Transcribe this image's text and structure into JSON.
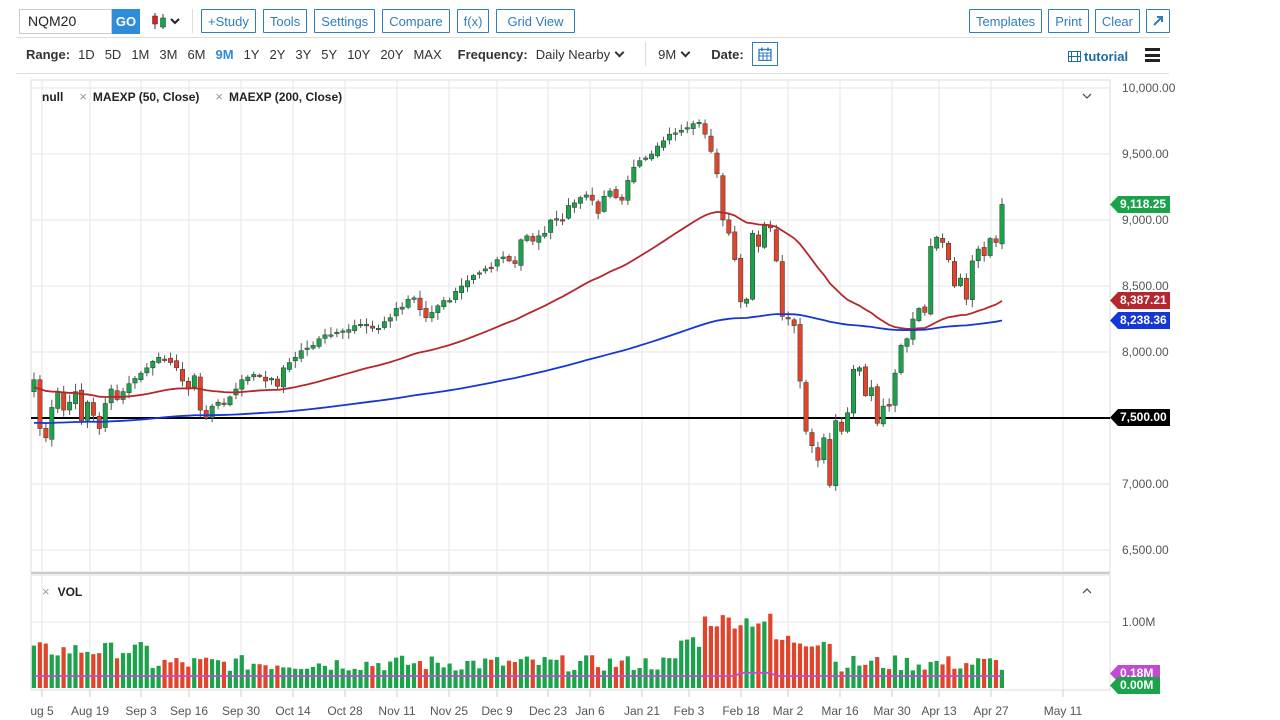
{
  "toolbar": {
    "symbol": "NQM20",
    "go_label": "GO",
    "chart_type_icon": "candlestick-icon",
    "buttons": [
      "+Study",
      "Tools",
      "Settings",
      "Compare",
      "f(x)",
      "Grid View"
    ],
    "right_buttons": [
      "Templates",
      "Print",
      "Clear"
    ],
    "expand_icon": "expand-arrow-icon"
  },
  "range_bar": {
    "range_label": "Range:",
    "ranges": [
      "1D",
      "5D",
      "1M",
      "3M",
      "6M",
      "9M",
      "1Y",
      "2Y",
      "3Y",
      "5Y",
      "10Y",
      "20Y",
      "MAX"
    ],
    "active_range": "9M",
    "frequency_label": "Frequency:",
    "frequency_value": "Daily Nearby",
    "period_value": "9M",
    "date_label": "Date:",
    "tutorial_label": "tutorial"
  },
  "legend": {
    "main": "null",
    "studies": [
      "MAEXP (50, Close)",
      "MAEXP (200, Close)"
    ],
    "volume": "VOL"
  },
  "colors": {
    "up": "#1aa34a",
    "down": "#e0452b",
    "ma50": "#b5272d",
    "ma200": "#1537d8",
    "hline": "#000000",
    "vol_avg": "#c04ad0",
    "accent": "#2f8cd8"
  },
  "chart_data": {
    "type": "candlestick",
    "title": "NQM20 Daily Nearby 9M",
    "y_axis": {
      "ticks": [
        "10,000.00",
        "9,500.00",
        "9,000.00",
        "8,500.00",
        "8,000.00",
        "7,000.00",
        "6,500.00"
      ],
      "tick_values": [
        10000,
        9500,
        9000,
        8500,
        8000,
        7000,
        6500
      ],
      "range": [
        6500,
        10000
      ]
    },
    "x_axis": {
      "ticks": [
        "ug 5",
        "Aug 19",
        "Sep 3",
        "Sep 16",
        "Sep 30",
        "Oct 14",
        "Oct 28",
        "Nov 11",
        "Nov 25",
        "Dec 9",
        "Dec 23",
        "Jan 6",
        "Jan 21",
        "Feb 3",
        "Feb 18",
        "Mar 2",
        "Mar 16",
        "Mar 30",
        "Apr 13",
        "Apr 27",
        "May 11"
      ],
      "tick_x": [
        42,
        90,
        141,
        189,
        241,
        293,
        345,
        397,
        449,
        497,
        548,
        590,
        642,
        689,
        741,
        788,
        840,
        892,
        939,
        991,
        1063
      ]
    },
    "price_tags": [
      {
        "label": "9,118.25",
        "value": 9118.25,
        "color": "#1aa34a"
      },
      {
        "label": "8,387.21",
        "value": 8387.21,
        "color": "#b5272d"
      },
      {
        "label": "8,238.36",
        "value": 8238.36,
        "color": "#1537d8"
      },
      {
        "label": "7,500.00",
        "value": 7500,
        "color": "#000000"
      }
    ],
    "horizontal_line": 7500,
    "closes": [
      7790,
      7420,
      7350,
      7580,
      7700,
      7560,
      7620,
      7700,
      7480,
      7620,
      7520,
      7420,
      7610,
      7720,
      7640,
      7700,
      7760,
      7800,
      7840,
      7880,
      7930,
      7960,
      7940,
      7920,
      7880,
      7780,
      7720,
      7820,
      7560,
      7500,
      7590,
      7620,
      7610,
      7660,
      7720,
      7790,
      7810,
      7830,
      7820,
      7780,
      7800,
      7740,
      7880,
      7920,
      7960,
      8010,
      8030,
      8050,
      8100,
      8130,
      8130,
      8150,
      8160,
      8170,
      8200,
      8210,
      8210,
      8180,
      8180,
      8230,
      8260,
      8330,
      8340,
      8400,
      8410,
      8320,
      8260,
      8300,
      8350,
      8390,
      8390,
      8460,
      8500,
      8540,
      8580,
      8600,
      8630,
      8640,
      8700,
      8720,
      8690,
      8670,
      8850,
      8880,
      8840,
      8880,
      8900,
      9000,
      9010,
      9000,
      9110,
      9130,
      9170,
      9190,
      9150,
      9050,
      9180,
      9220,
      9170,
      9150,
      9300,
      9400,
      9450,
      9470,
      9500,
      9560,
      9600,
      9650,
      9660,
      9680,
      9700,
      9730,
      9740,
      9650,
      9520,
      9350,
      9000,
      8900,
      8700,
      8380,
      8400,
      8900,
      8800,
      8960,
      8940,
      8690,
      8270,
      8250,
      8200,
      7780,
      7400,
      7290,
      7180,
      7350,
      6990,
      7480,
      7400,
      7540,
      7870,
      7880,
      7670,
      7730,
      7460,
      7590,
      7590,
      7840,
      8050,
      8100,
      8250,
      8330,
      8300,
      8800,
      8870,
      8830,
      8700,
      8500,
      8560,
      8400,
      8690,
      8780,
      8730,
      8860,
      8830,
      9118
    ],
    "ma50_tag": 8387.21,
    "ma200_tag": 8238.36,
    "volume": {
      "y_axis": {
        "ticks": [
          "1.00M"
        ],
        "range": [
          0,
          1.0
        ]
      },
      "tags": [
        {
          "label": "0.18M",
          "color": "#c04ad0"
        },
        {
          "label": "0.00M",
          "color": "#1aa34a"
        }
      ]
    }
  }
}
